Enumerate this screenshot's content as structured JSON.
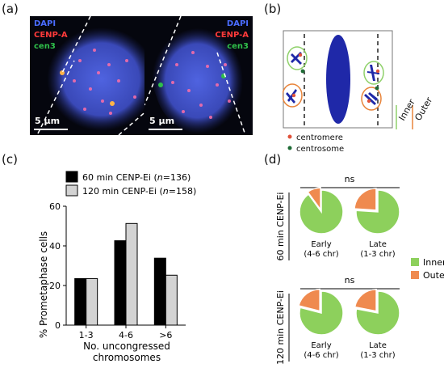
{
  "panel_labels": {
    "a": "(a)",
    "b": "(b)",
    "c": "(c)",
    "d": "(d)"
  },
  "panel_a": {
    "images": [
      {
        "stains": [
          "DAPI",
          "CENP-A",
          "cen3"
        ],
        "scale_bar": "5 μm"
      },
      {
        "stains": [
          "DAPI",
          "CENP-A",
          "cen3"
        ],
        "scale_bar": "5 μm"
      }
    ],
    "colors": {
      "DAPI": "#4a6cff",
      "CENP-A": "#ff3a3a",
      "cen3": "#2fbf4a"
    }
  },
  "panel_b": {
    "legend": [
      {
        "label": "centromere",
        "color": "#e0523a"
      },
      {
        "label": "centrosome",
        "color": "#1e6b35"
      }
    ],
    "region_labels": [
      {
        "label": "Inner",
        "color": "#8fd16a"
      },
      {
        "label": "Outer",
        "color": "#e8843a"
      }
    ]
  },
  "chart_data": [
    {
      "type": "bar",
      "panel": "c",
      "categories": [
        "1-3",
        "4-6",
        ">6"
      ],
      "series": [
        {
          "name": "60 min CENP-Ei (n=136)",
          "name_parts": [
            "60 min CENP-Ei (",
            "n",
            "=136)"
          ],
          "color": "#000000",
          "values": [
            23.5,
            42.6,
            33.8
          ]
        },
        {
          "name": "120 min CENP-Ei (n=158)",
          "name_parts": [
            "120 min CENP-Ei (",
            "n",
            "=158)"
          ],
          "color": "#d3d3d3",
          "values": [
            23.5,
            51.3,
            25.2
          ]
        }
      ],
      "xlabel": "No. uncongressed chromosomes",
      "xlabel_lines": [
        "No. uncongressed",
        "chromosomes"
      ],
      "ylabel": "% Prometaphase cells",
      "ylim": [
        0,
        60
      ],
      "yticks": [
        0,
        20,
        40,
        60
      ],
      "legend_position": "top-left"
    },
    {
      "type": "pie",
      "panel": "d",
      "groups": [
        {
          "row_label": "60 min CENP-Ei",
          "significance": "ns",
          "pies": [
            {
              "label_lines": [
                "Early",
                "(4-6 chr)"
              ],
              "slices": [
                {
                  "name": "Inner",
                  "value": 90
                },
                {
                  "name": "Outer",
                  "value": 10
                }
              ]
            },
            {
              "label_lines": [
                "Late",
                "(1-3 chr)"
              ],
              "slices": [
                {
                  "name": "Inner",
                  "value": 76
                },
                {
                  "name": "Outer",
                  "value": 24
                }
              ]
            }
          ]
        },
        {
          "row_label": "120 min CENP-Ei",
          "significance": "ns",
          "pies": [
            {
              "label_lines": [
                "Early",
                "(4-6 chr)"
              ],
              "slices": [
                {
                  "name": "Inner",
                  "value": 79
                },
                {
                  "name": "Outer",
                  "value": 21
                }
              ]
            },
            {
              "label_lines": [
                "Late",
                "(1-3 chr)"
              ],
              "slices": [
                {
                  "name": "Inner",
                  "value": 78
                },
                {
                  "name": "Outer",
                  "value": 22
                }
              ]
            }
          ]
        }
      ],
      "legend": [
        {
          "name": "Inner",
          "color": "#8dd05c"
        },
        {
          "name": "Outer",
          "color": "#ef8a4f"
        }
      ]
    }
  ]
}
